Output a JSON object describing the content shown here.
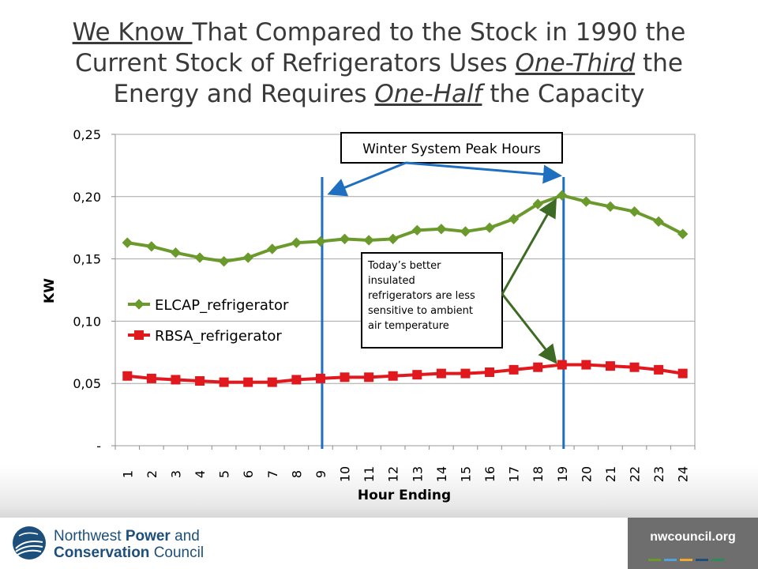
{
  "title": {
    "part1": "We Know ",
    "part2": "That Compared to the Stock in 1990 the Current Stock of Refrigerators Uses ",
    "part3": "One-Third",
    "part4": " the Energy and Requires ",
    "part5": "One-Half",
    "part6": " the Capacity"
  },
  "chart_data": {
    "type": "line",
    "categories": [
      "1",
      "2",
      "3",
      "4",
      "5",
      "6",
      "7",
      "8",
      "9",
      "10",
      "11",
      "12",
      "13",
      "14",
      "15",
      "16",
      "17",
      "18",
      "19",
      "20",
      "21",
      "22",
      "23",
      "24"
    ],
    "series": [
      {
        "name": "ELCAP_refrigerator",
        "color": "#6a9a2b",
        "marker": "diamond",
        "values": [
          0.163,
          0.16,
          0.155,
          0.151,
          0.148,
          0.151,
          0.158,
          0.163,
          0.164,
          0.166,
          0.165,
          0.166,
          0.173,
          0.174,
          0.172,
          0.175,
          0.182,
          0.194,
          0.201,
          0.196,
          0.192,
          0.188,
          0.18,
          0.17
        ]
      },
      {
        "name": "RBSA_refrigerator",
        "color": "#e0191e",
        "marker": "square",
        "values": [
          0.056,
          0.054,
          0.053,
          0.052,
          0.051,
          0.051,
          0.051,
          0.053,
          0.054,
          0.055,
          0.055,
          0.056,
          0.057,
          0.058,
          0.058,
          0.059,
          0.061,
          0.063,
          0.065,
          0.065,
          0.064,
          0.063,
          0.061,
          0.058
        ]
      }
    ],
    "ylim": [
      0,
      0.25
    ],
    "yticks": [
      0,
      0.05,
      0.1,
      0.15,
      0.2,
      0.25
    ],
    "ytick_labels": [
      "-",
      "0,05",
      "0,10",
      "0,15",
      "0,20",
      "0,25"
    ],
    "xlabel": "Hour Ending",
    "ylabel": "KW",
    "grid": true,
    "legend": "left-center",
    "vertical_lines": [
      9,
      19
    ],
    "vertical_line_color": "#1f6fc1",
    "annotations": [
      {
        "id": "peak",
        "text": "Winter System Peak Hours"
      },
      {
        "id": "note",
        "lines": [
          "Today’s better",
          "insulated",
          "refrigerators are less",
          "sensitive to ambient",
          "air temperature"
        ]
      }
    ]
  },
  "footer": {
    "org_line1_a": "Northwest ",
    "org_line1_b": "Power",
    "org_line1_c": " and",
    "org_line2_a": "Conservation",
    "org_line2_b": " Council",
    "site": "nwcouncil.org",
    "accent_colors": [
      "#6a9a2b",
      "#4fa3d9",
      "#f0a830",
      "#1f4f7c",
      "#2e8b57"
    ]
  }
}
